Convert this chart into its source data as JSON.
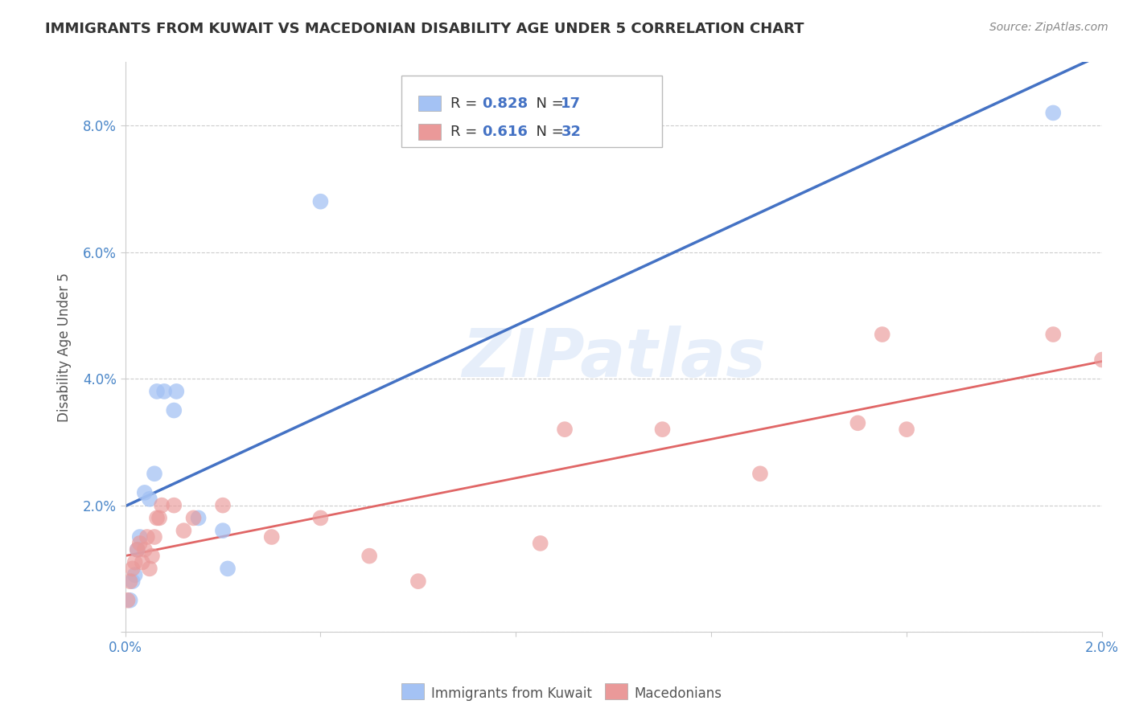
{
  "title": "IMMIGRANTS FROM KUWAIT VS MACEDONIAN DISABILITY AGE UNDER 5 CORRELATION CHART",
  "source": "Source: ZipAtlas.com",
  "ylabel": "Disability Age Under 5",
  "xlim": [
    0.0,
    0.02
  ],
  "ylim": [
    0.0,
    0.09
  ],
  "xticks": [
    0.0,
    0.004,
    0.008,
    0.012,
    0.016,
    0.02
  ],
  "xtick_labels": [
    "0.0%",
    "",
    "",
    "",
    "",
    "2.0%"
  ],
  "yticks": [
    0.0,
    0.02,
    0.04,
    0.06,
    0.08
  ],
  "ytick_labels": [
    "",
    "2.0%",
    "4.0%",
    "6.0%",
    "8.0%"
  ],
  "blue_color": "#a4c2f4",
  "pink_color": "#ea9999",
  "blue_line_color": "#4472c4",
  "pink_line_color": "#e06666",
  "background_color": "#ffffff",
  "watermark": "ZIPatlas",
  "legend_R_blue": "0.828",
  "legend_N_blue": "17",
  "legend_R_pink": "0.616",
  "legend_N_pink": "32",
  "blue_scatter_x": [
    0.0001,
    0.00015,
    0.0002,
    0.00025,
    0.0003,
    0.0004,
    0.0005,
    0.0006,
    0.00065,
    0.0008,
    0.001,
    0.00105,
    0.0015,
    0.002,
    0.0021,
    0.004,
    0.019
  ],
  "blue_scatter_y": [
    0.005,
    0.008,
    0.009,
    0.013,
    0.015,
    0.022,
    0.021,
    0.025,
    0.038,
    0.038,
    0.035,
    0.038,
    0.018,
    0.016,
    0.01,
    0.068,
    0.082
  ],
  "pink_scatter_x": [
    5e-05,
    0.0001,
    0.00015,
    0.0002,
    0.00025,
    0.0003,
    0.00035,
    0.0004,
    0.00045,
    0.0005,
    0.00055,
    0.0006,
    0.00065,
    0.0007,
    0.00075,
    0.001,
    0.0012,
    0.0014,
    0.002,
    0.003,
    0.004,
    0.005,
    0.006,
    0.0085,
    0.009,
    0.011,
    0.013,
    0.015,
    0.0155,
    0.016,
    0.019,
    0.02
  ],
  "pink_scatter_y": [
    0.005,
    0.008,
    0.01,
    0.011,
    0.013,
    0.014,
    0.011,
    0.013,
    0.015,
    0.01,
    0.012,
    0.015,
    0.018,
    0.018,
    0.02,
    0.02,
    0.016,
    0.018,
    0.02,
    0.015,
    0.018,
    0.012,
    0.008,
    0.014,
    0.032,
    0.032,
    0.025,
    0.033,
    0.047,
    0.032,
    0.047,
    0.043
  ]
}
